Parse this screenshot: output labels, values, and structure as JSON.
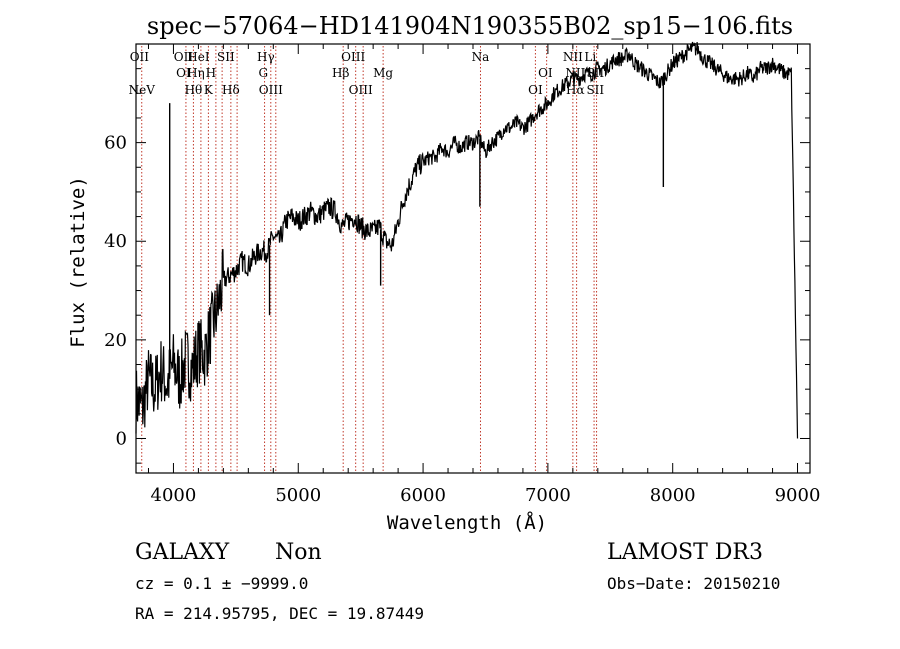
{
  "chart_data": {
    "type": "line",
    "title": "spec−57064−HD141904N190355B02_sp15−106.fits",
    "xlabel": "Wavelength (Å)",
    "ylabel": "Flux (relative)",
    "xlim": [
      3700,
      9100
    ],
    "ylim": [
      -7,
      80
    ],
    "xticks": [
      4000,
      5000,
      6000,
      7000,
      8000,
      9000
    ],
    "yticks": [
      0,
      20,
      40,
      60
    ],
    "grid": false,
    "series": [
      {
        "name": "flux",
        "x": [
          3700,
          3750,
          3800,
          3850,
          3900,
          3950,
          4000,
          4050,
          4100,
          4150,
          4200,
          4250,
          4300,
          4350,
          4400,
          4450,
          4500,
          4550,
          4600,
          4650,
          4700,
          4750,
          4800,
          4850,
          4900,
          4950,
          5000,
          5050,
          5100,
          5150,
          5200,
          5250,
          5300,
          5350,
          5400,
          5450,
          5500,
          5550,
          5600,
          5650,
          5700,
          5750,
          5800,
          5850,
          5900,
          5950,
          6000,
          6050,
          6100,
          6150,
          6200,
          6250,
          6300,
          6350,
          6400,
          6450,
          6500,
          6550,
          6600,
          6650,
          6700,
          6750,
          6800,
          6850,
          6900,
          6950,
          7000,
          7050,
          7100,
          7150,
          7200,
          7250,
          7300,
          7350,
          7400,
          7450,
          7500,
          7550,
          7600,
          7650,
          7700,
          7750,
          7800,
          7850,
          7900,
          7950,
          8000,
          8050,
          8100,
          8150,
          8200,
          8250,
          8300,
          8350,
          8400,
          8450,
          8500,
          8550,
          8600,
          8650,
          8700,
          8750,
          8800,
          8850,
          8900,
          8950,
          9000
        ],
        "y": [
          8,
          6,
          12,
          10,
          14,
          11,
          15,
          12,
          16,
          14,
          18,
          17,
          22,
          26,
          32,
          33,
          34,
          36,
          35,
          37,
          38,
          38,
          41,
          40,
          44,
          45,
          44,
          45,
          46,
          45,
          46,
          47,
          46,
          43,
          44,
          45,
          43,
          42,
          42,
          43,
          40,
          39,
          44,
          49,
          52,
          55,
          56,
          57,
          57,
          59,
          58,
          60,
          59,
          60,
          60,
          61,
          58,
          60,
          61,
          63,
          63,
          64,
          63,
          64,
          66,
          67,
          68,
          70,
          71,
          72,
          73,
          73,
          74,
          74,
          75,
          75,
          76,
          77,
          77,
          78,
          76,
          75,
          74,
          73,
          72,
          74,
          76,
          77,
          78,
          79,
          79,
          77,
          76,
          75,
          74,
          73,
          73,
          73,
          74,
          73,
          75,
          75,
          76,
          75,
          74,
          74,
          0
        ]
      }
    ],
    "spikes": [
      {
        "x": 3970,
        "y": 68
      },
      {
        "x": 4770,
        "y": 25
      },
      {
        "x": 5660,
        "y": 31
      },
      {
        "x": 6455,
        "y": 47
      },
      {
        "x": 7925,
        "y": 51
      }
    ],
    "emission_lines": [
      {
        "label": "NeV",
        "x": 3746,
        "row": 3
      },
      {
        "label": "OII",
        "x": 3727,
        "row": 0
      },
      {
        "label": "OII",
        "x": 4080,
        "row": 0
      },
      {
        "label": "HeI",
        "x": 4200,
        "row": 0
      },
      {
        "label": "SII",
        "x": 4420,
        "row": 0
      },
      {
        "label": "Hγ",
        "x": 4740,
        "row": 0
      },
      {
        "label": "OIII",
        "x": 5440,
        "row": 0
      },
      {
        "label": "Na",
        "x": 6460,
        "row": 0
      },
      {
        "label": "NII",
        "x": 7200,
        "row": 0
      },
      {
        "label": "Li",
        "x": 7340,
        "row": 0
      },
      {
        "label": "OI",
        "x": 4080,
        "row": 1
      },
      {
        "label": "Hη",
        "x": 4180,
        "row": 1
      },
      {
        "label": "H",
        "x": 4300,
        "row": 1
      },
      {
        "label": "G",
        "x": 4720,
        "row": 1
      },
      {
        "label": "Hβ",
        "x": 5340,
        "row": 1
      },
      {
        "label": "Mg",
        "x": 5680,
        "row": 1
      },
      {
        "label": "OI",
        "x": 6980,
        "row": 1
      },
      {
        "label": "NII",
        "x": 7220,
        "row": 1
      },
      {
        "label": "SII",
        "x": 7380,
        "row": 1
      },
      {
        "label": "Hθ",
        "x": 4160,
        "row": 2
      },
      {
        "label": "K",
        "x": 4280,
        "row": 2
      },
      {
        "label": "Hδ",
        "x": 4460,
        "row": 2
      },
      {
        "label": "OIII",
        "x": 4780,
        "row": 2
      },
      {
        "label": "OIII",
        "x": 5500,
        "row": 2
      },
      {
        "label": "OI",
        "x": 6900,
        "row": 2
      },
      {
        "label": "Hα",
        "x": 7220,
        "row": 2
      },
      {
        "label": "SII",
        "x": 7380,
        "row": 2
      }
    ],
    "line_markers": [
      3746,
      4100,
      4160,
      4220,
      4280,
      4340,
      4390,
      4460,
      4510,
      4730,
      4780,
      4820,
      5360,
      5460,
      5520,
      5680,
      6460,
      6900,
      6990,
      7200,
      7230,
      7370,
      7390
    ]
  },
  "info": {
    "class": "GALAXY",
    "subclass": "Non",
    "survey": "LAMOST DR3",
    "cz": "cz = 0.1 ± −9999.0",
    "obs_date": "Obs−Date: 20150210",
    "coords": "RA = 214.95795, DEC =  19.87449"
  },
  "colors": {
    "marker_line": "#c0392b",
    "spectrum": "#000000",
    "axes": "#000000"
  }
}
